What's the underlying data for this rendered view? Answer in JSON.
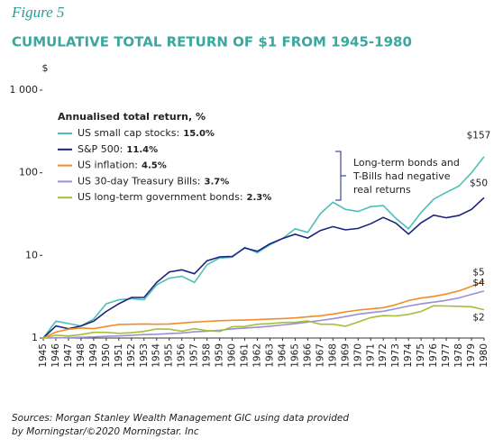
{
  "figure_label": "Figure 5",
  "source": "Sources: Morgan Stanley Wealth Management GIC using data provided by Morningstar/©2020 Morningstar. Inc",
  "chart_data": {
    "type": "line",
    "title": "CUMULATIVE TOTAL RETURN OF $1 FROM 1945-1980",
    "ylabel": "$",
    "log_scale": true,
    "grid": false,
    "ylim": [
      1,
      1000
    ],
    "yticks": [
      {
        "value": 1000,
        "label": "1 000"
      },
      100,
      10,
      1
    ],
    "xlim": [
      1945,
      1980
    ],
    "xticks": [
      1945,
      1946,
      1947,
      1948,
      1949,
      1950,
      1951,
      1952,
      1953,
      1954,
      1955,
      1956,
      1957,
      1958,
      1959,
      1960,
      1961,
      1962,
      1963,
      1964,
      1965,
      1966,
      1967,
      1968,
      1969,
      1970,
      1971,
      1972,
      1973,
      1974,
      1975,
      1976,
      1977,
      1978,
      1979,
      1980
    ],
    "x": [
      1945,
      1946,
      1947,
      1948,
      1949,
      1950,
      1951,
      1952,
      1953,
      1954,
      1955,
      1956,
      1957,
      1958,
      1959,
      1960,
      1961,
      1962,
      1963,
      1964,
      1965,
      1966,
      1967,
      1968,
      1969,
      1970,
      1971,
      1972,
      1973,
      1974,
      1975,
      1976,
      1977,
      1978,
      1979,
      1980
    ],
    "legend_title": "Annualised total return, %",
    "series": [
      {
        "name": "US small cap stocks:",
        "annualised_return": "15.0%",
        "color": "#4fbfb8",
        "end_label": "$157",
        "values": [
          1,
          1.6,
          1.5,
          1.4,
          1.7,
          2.6,
          2.9,
          3.0,
          2.9,
          4.4,
          5.3,
          5.6,
          4.7,
          7.7,
          9.3,
          9.5,
          12.5,
          10.8,
          13.5,
          16,
          21,
          19,
          32,
          44,
          36,
          34,
          39,
          40,
          28,
          21,
          33,
          48,
          58,
          69,
          100,
          157
        ]
      },
      {
        "name": "S&P 500:",
        "annualised_return": "11.4%",
        "color": "#1a237e",
        "end_label": "$50",
        "values": [
          1,
          1.4,
          1.3,
          1.4,
          1.6,
          2.1,
          2.6,
          3.1,
          3.1,
          4.7,
          6.3,
          6.7,
          6.0,
          8.6,
          9.6,
          9.7,
          12.3,
          11.2,
          13.8,
          16,
          18,
          16.2,
          20,
          22.3,
          20.4,
          21.2,
          24.2,
          28.8,
          24.6,
          18.1,
          24.8,
          30.7,
          28.5,
          30.4,
          36,
          50
        ]
      },
      {
        "name": "US inflation:",
        "annualised_return": "4.5%",
        "color": "#f28c28",
        "end_label": "$5",
        "values": [
          1,
          1.18,
          1.28,
          1.32,
          1.3,
          1.38,
          1.46,
          1.47,
          1.48,
          1.47,
          1.48,
          1.52,
          1.56,
          1.59,
          1.62,
          1.64,
          1.65,
          1.67,
          1.7,
          1.72,
          1.75,
          1.81,
          1.86,
          1.95,
          2.07,
          2.18,
          2.25,
          2.33,
          2.53,
          2.84,
          3.04,
          3.19,
          3.41,
          3.72,
          4.22,
          4.9
        ]
      },
      {
        "name": "US 30-day Treasury Bills:",
        "annualised_return": "3.7%",
        "color": "#9b8fd6",
        "end_label": "$4",
        "values": [
          1,
          1.004,
          1.01,
          1.02,
          1.03,
          1.05,
          1.06,
          1.08,
          1.1,
          1.11,
          1.13,
          1.15,
          1.19,
          1.21,
          1.24,
          1.29,
          1.32,
          1.35,
          1.39,
          1.44,
          1.49,
          1.56,
          1.63,
          1.71,
          1.82,
          1.94,
          2.03,
          2.11,
          2.26,
          2.44,
          2.59,
          2.72,
          2.86,
          3.06,
          3.37,
          3.7
        ]
      },
      {
        "name": "US long-term government bonds:",
        "annualised_return": "2.3%",
        "color": "#a4bf36",
        "end_label": "$2",
        "values": [
          1,
          1.08,
          1.06,
          1.1,
          1.17,
          1.17,
          1.14,
          1.16,
          1.2,
          1.29,
          1.28,
          1.21,
          1.3,
          1.23,
          1.2,
          1.37,
          1.38,
          1.47,
          1.49,
          1.54,
          1.55,
          1.61,
          1.47,
          1.47,
          1.39,
          1.56,
          1.77,
          1.87,
          1.85,
          1.93,
          2.1,
          2.46,
          2.44,
          2.42,
          2.39,
          2.2
        ]
      }
    ],
    "annotation": [
      "Long-term bonds and",
      "T-Bills had negative",
      "real returns"
    ]
  }
}
